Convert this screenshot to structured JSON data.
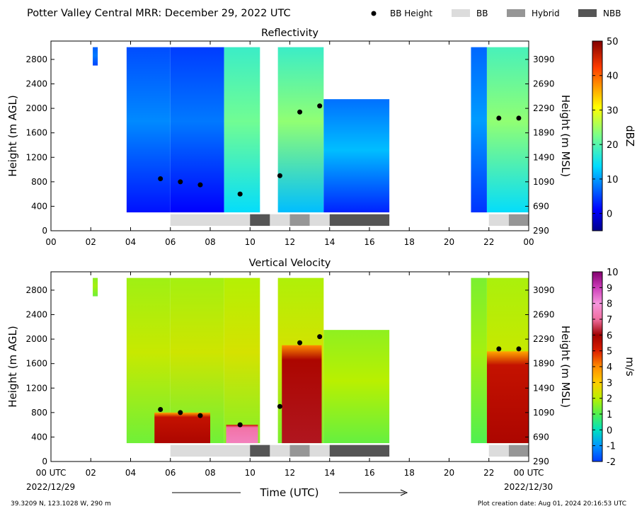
{
  "header": {
    "title": "Potter Valley Central MRR:  December 29, 2022 UTC",
    "legend": [
      {
        "label": "BB Height",
        "kind": "dot",
        "color": "#000000"
      },
      {
        "label": "BB",
        "kind": "box",
        "color": "#dcdcdc"
      },
      {
        "label": "Hybrid",
        "kind": "box",
        "color": "#969696"
      },
      {
        "label": "NBB",
        "kind": "box",
        "color": "#555555"
      }
    ]
  },
  "footer": {
    "location": "39.3209 N, 123.1028 W, 290 m",
    "creation": "Plot creation date: Aug 01, 2024 20:16:53 UTC",
    "xlabel": "Time (UTC)",
    "start_label": "00 UTC",
    "start_date": "2022/12/29",
    "end_label": "00 UTC",
    "end_date": "2022/12/30"
  },
  "chart_data": [
    {
      "type": "heatmap",
      "title": "Reflectivity",
      "ylabel": "Height (m AGL)",
      "y2label": "Height (m MSL)",
      "colorbar_label": "dBZ",
      "xlim": [
        0,
        24
      ],
      "ylim": [
        0,
        3100
      ],
      "xticks": [
        "00",
        "02",
        "04",
        "06",
        "08",
        "10",
        "12",
        "14",
        "16",
        "18",
        "20",
        "22",
        "00"
      ],
      "yticks": [
        0,
        400,
        800,
        1200,
        1600,
        2000,
        2400,
        2800
      ],
      "y2ticks": [
        290,
        690,
        1090,
        1490,
        1890,
        2290,
        2690,
        3090
      ],
      "colorbar_range": [
        -5,
        50
      ],
      "colorbar_ticks": [
        0,
        10,
        20,
        30,
        40,
        50
      ],
      "colormap": "jet",
      "field_segments": [
        {
          "t0": 2.1,
          "t1": 2.35,
          "zbot": 2700,
          "ztop": 3000,
          "v0": 5,
          "v1": 8
        },
        {
          "t0": 3.8,
          "t1": 6.0,
          "zbot": 300,
          "ztop": 3000,
          "v0": 2,
          "v1": 9
        },
        {
          "t0": 6.0,
          "t1": 8.7,
          "zbot": 300,
          "ztop": 3000,
          "v0": 1,
          "v1": 8
        },
        {
          "t0": 8.7,
          "t1": 10.5,
          "zbot": 300,
          "ztop": 3000,
          "v0": 14,
          "v1": 22
        },
        {
          "t0": 11.4,
          "t1": 13.7,
          "zbot": 300,
          "ztop": 3000,
          "v0": 12,
          "v1": 24
        },
        {
          "t0": 13.7,
          "t1": 17.0,
          "zbot": 300,
          "ztop": 2150,
          "v0": 3,
          "v1": 12
        },
        {
          "t0": 21.1,
          "t1": 21.9,
          "zbot": 300,
          "ztop": 3000,
          "v0": 4,
          "v1": 10
        },
        {
          "t0": 21.9,
          "t1": 24.0,
          "zbot": 300,
          "ztop": 3000,
          "v0": 14,
          "v1": 24
        }
      ],
      "bb_height": [
        {
          "t": 5.5,
          "z": 850
        },
        {
          "t": 6.5,
          "z": 800
        },
        {
          "t": 7.5,
          "z": 750
        },
        {
          "t": 9.5,
          "z": 600
        },
        {
          "t": 11.5,
          "z": 900
        },
        {
          "t": 12.5,
          "z": 1940
        },
        {
          "t": 13.5,
          "z": 2040
        },
        {
          "t": 22.5,
          "z": 1840
        },
        {
          "t": 23.5,
          "z": 1840
        }
      ],
      "bb_classes": [
        {
          "t0": 6.0,
          "t1": 10.0,
          "class": "BB"
        },
        {
          "t0": 10.0,
          "t1": 11.0,
          "class": "NBB"
        },
        {
          "t0": 11.0,
          "t1": 12.0,
          "class": "BB"
        },
        {
          "t0": 12.0,
          "t1": 13.0,
          "class": "Hybrid"
        },
        {
          "t0": 13.0,
          "t1": 14.0,
          "class": "BB"
        },
        {
          "t0": 14.0,
          "t1": 17.0,
          "class": "NBB"
        },
        {
          "t0": 22.0,
          "t1": 23.0,
          "class": "BB"
        },
        {
          "t0": 23.0,
          "t1": 24.0,
          "class": "Hybrid"
        }
      ]
    },
    {
      "type": "heatmap",
      "title": "Vertical Velocity",
      "ylabel": "Height (m AGL)",
      "y2label": "Height (m MSL)",
      "colorbar_label": "m/s",
      "xlim": [
        0,
        24
      ],
      "ylim": [
        0,
        3100
      ],
      "xticks": [
        "00 UTC",
        "02",
        "04",
        "06",
        "08",
        "10",
        "12",
        "14",
        "16",
        "18",
        "20",
        "22",
        "00 UTC"
      ],
      "yticks": [
        0,
        400,
        800,
        1200,
        1600,
        2000,
        2400,
        2800
      ],
      "y2ticks": [
        290,
        690,
        1090,
        1490,
        1890,
        2290,
        2690,
        3090
      ],
      "colorbar_range": [
        -2,
        10
      ],
      "colorbar_ticks": [
        -2,
        -1,
        0,
        1,
        2,
        3,
        4,
        5,
        6,
        7,
        8,
        9,
        10
      ],
      "colormap": "velocity",
      "field_segments": [
        {
          "t0": 2.1,
          "t1": 2.35,
          "zbot": 2700,
          "ztop": 3000,
          "v0": 1.3,
          "v1": 1.8
        },
        {
          "t0": 3.8,
          "t1": 6.0,
          "zbot": 300,
          "ztop": 3000,
          "v0": 1.3,
          "v1": 2.2
        },
        {
          "t0": 6.0,
          "t1": 8.7,
          "zbot": 300,
          "ztop": 3000,
          "v0": 1.3,
          "v1": 2.3
        },
        {
          "t0": 8.7,
          "t1": 10.5,
          "zbot": 300,
          "ztop": 3000,
          "v0": 1.5,
          "v1": 2.4
        },
        {
          "t0": 11.4,
          "t1": 13.7,
          "zbot": 300,
          "ztop": 3000,
          "v0": 1.4,
          "v1": 2.4
        },
        {
          "t0": 13.7,
          "t1": 17.0,
          "zbot": 300,
          "ztop": 2150,
          "v0": 1.2,
          "v1": 2.0
        },
        {
          "t0": 21.1,
          "t1": 21.9,
          "zbot": 300,
          "ztop": 3000,
          "v0": 1.0,
          "v1": 1.8
        },
        {
          "t0": 21.9,
          "t1": 24.0,
          "zbot": 300,
          "ztop": 3000,
          "v0": 1.5,
          "v1": 2.2
        }
      ],
      "fall_regions": [
        {
          "t0": 5.2,
          "t1": 8.0,
          "ztop": 800,
          "v": 5.8
        },
        {
          "t0": 8.8,
          "t1": 10.4,
          "ztop": 600,
          "v": 7.5
        },
        {
          "t0": 11.6,
          "t1": 13.6,
          "ztop": 1900,
          "v": 6.2
        },
        {
          "t0": 21.9,
          "t1": 24.0,
          "ztop": 1800,
          "v": 5.8
        }
      ],
      "bb_height": [
        {
          "t": 5.5,
          "z": 850
        },
        {
          "t": 6.5,
          "z": 800
        },
        {
          "t": 7.5,
          "z": 750
        },
        {
          "t": 9.5,
          "z": 600
        },
        {
          "t": 11.5,
          "z": 900
        },
        {
          "t": 12.5,
          "z": 1940
        },
        {
          "t": 13.5,
          "z": 2040
        },
        {
          "t": 22.5,
          "z": 1840
        },
        {
          "t": 23.5,
          "z": 1840
        }
      ],
      "bb_classes": [
        {
          "t0": 6.0,
          "t1": 10.0,
          "class": "BB"
        },
        {
          "t0": 10.0,
          "t1": 11.0,
          "class": "NBB"
        },
        {
          "t0": 11.0,
          "t1": 12.0,
          "class": "BB"
        },
        {
          "t0": 12.0,
          "t1": 13.0,
          "class": "Hybrid"
        },
        {
          "t0": 13.0,
          "t1": 14.0,
          "class": "BB"
        },
        {
          "t0": 14.0,
          "t1": 17.0,
          "class": "NBB"
        },
        {
          "t0": 22.0,
          "t1": 23.0,
          "class": "BB"
        },
        {
          "t0": 23.0,
          "t1": 24.0,
          "class": "Hybrid"
        }
      ]
    }
  ]
}
